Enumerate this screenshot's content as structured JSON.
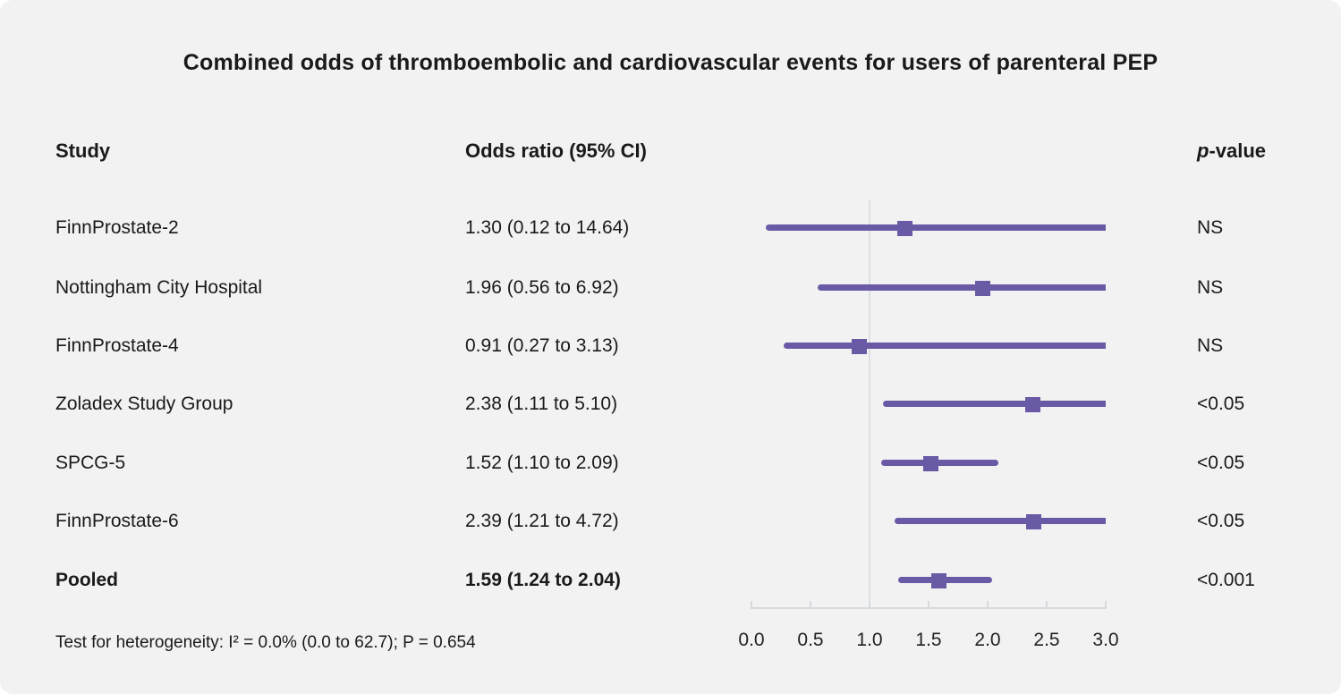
{
  "title": "Combined odds of thromboembolic and cardiovascular events for users of parenteral PEP",
  "columns": {
    "study": "Study",
    "odds_ratio": "Odds ratio (95% CI)",
    "p_value_prefix": "p",
    "p_value_suffix": "-value"
  },
  "footer": "Test for heterogeneity: I² = 0.0% (0.0 to 62.7); P = 0.654",
  "colors": {
    "background": "#f2f2f2",
    "text": "#1a1a1a",
    "marker": "#6a5aa5",
    "ci_line": "#6a5aa5",
    "reference_line": "#dbdfe2",
    "axis": "#d6d9dd",
    "axis_label": "#222222"
  },
  "chart_data": {
    "type": "forest",
    "title": "Combined odds of thromboembolic and cardiovascular events for users of parenteral PEP",
    "xlim": [
      0,
      3
    ],
    "x_ticks": [
      "0.0",
      "0.5",
      "1.0",
      "1.5",
      "2.0",
      "2.5",
      "3.0"
    ],
    "x_tick_values": [
      0,
      0.5,
      1,
      1.5,
      2,
      2.5,
      3
    ],
    "reference_line": 1.0,
    "grid": false,
    "studies": [
      {
        "study": "FinnProstate-2",
        "or": 1.3,
        "ci_low": 0.12,
        "ci_high": 14.64,
        "or_label": "1.30 (0.12 to 14.64)",
        "p": "NS",
        "bold": false
      },
      {
        "study": "Nottingham City Hospital",
        "or": 1.96,
        "ci_low": 0.56,
        "ci_high": 6.92,
        "or_label": "1.96 (0.56 to 6.92)",
        "p": "NS",
        "bold": false
      },
      {
        "study": "FinnProstate-4",
        "or": 0.91,
        "ci_low": 0.27,
        "ci_high": 3.13,
        "or_label": "0.91 (0.27 to 3.13)",
        "p": "NS",
        "bold": false
      },
      {
        "study": "Zoladex Study Group",
        "or": 2.38,
        "ci_low": 1.11,
        "ci_high": 5.1,
        "or_label": "2.38 (1.11 to 5.10)",
        "p": "<0.05",
        "bold": false
      },
      {
        "study": "SPCG-5",
        "or": 1.52,
        "ci_low": 1.1,
        "ci_high": 2.09,
        "or_label": "1.52 (1.10 to 2.09)",
        "p": "<0.05",
        "bold": false
      },
      {
        "study": "FinnProstate-6",
        "or": 2.39,
        "ci_low": 1.21,
        "ci_high": 4.72,
        "or_label": "2.39 (1.21 to 4.72)",
        "p": "<0.05",
        "bold": false
      },
      {
        "study": "Pooled",
        "or": 1.59,
        "ci_low": 1.24,
        "ci_high": 2.04,
        "or_label": "1.59 (1.24 to 2.04)",
        "p": "<0.001",
        "bold": true
      }
    ],
    "heterogeneity": "Test for heterogeneity: I² = 0.0% (0.0 to 62.7); P = 0.654"
  }
}
